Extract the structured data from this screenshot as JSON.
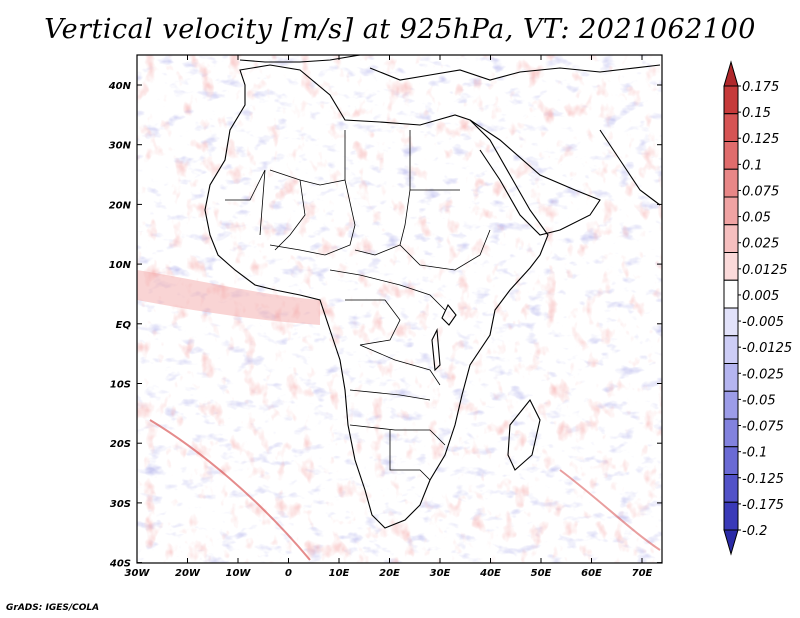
{
  "title": "Vertical velocity [m/s] at 925hPa, VT: 2021062100",
  "credit": "GrADS: IGES/COLA",
  "lat_labels": [
    "40N",
    "30N",
    "20N",
    "10N",
    "EQ",
    "10S",
    "20S",
    "30S",
    "40S"
  ],
  "lon_labels": [
    "30W",
    "20W",
    "10W",
    "0",
    "10E",
    "20E",
    "30E",
    "40E",
    "50E",
    "60E",
    "70E"
  ],
  "colorbar": {
    "labels": [
      "0.175",
      "0.15",
      "0.125",
      "0.1",
      "0.075",
      "0.05",
      "0.025",
      "0.0125",
      "0.005",
      "-0.005",
      "-0.0125",
      "-0.025",
      "-0.05",
      "-0.075",
      "-0.1",
      "-0.125",
      "-0.175",
      "-0.2"
    ],
    "colors": [
      "#b0282b",
      "#c63a3a",
      "#d65454",
      "#e06c6c",
      "#e88787",
      "#f0a3a3",
      "#f6bfbf",
      "#fbdada",
      "#ffffff",
      "#e2e2fa",
      "#cdcdf6",
      "#b5b5f0",
      "#9c9ce8",
      "#8282de",
      "#6a6ad4",
      "#5252c8",
      "#3a3ab8",
      "#2a2aa6"
    ]
  }
}
